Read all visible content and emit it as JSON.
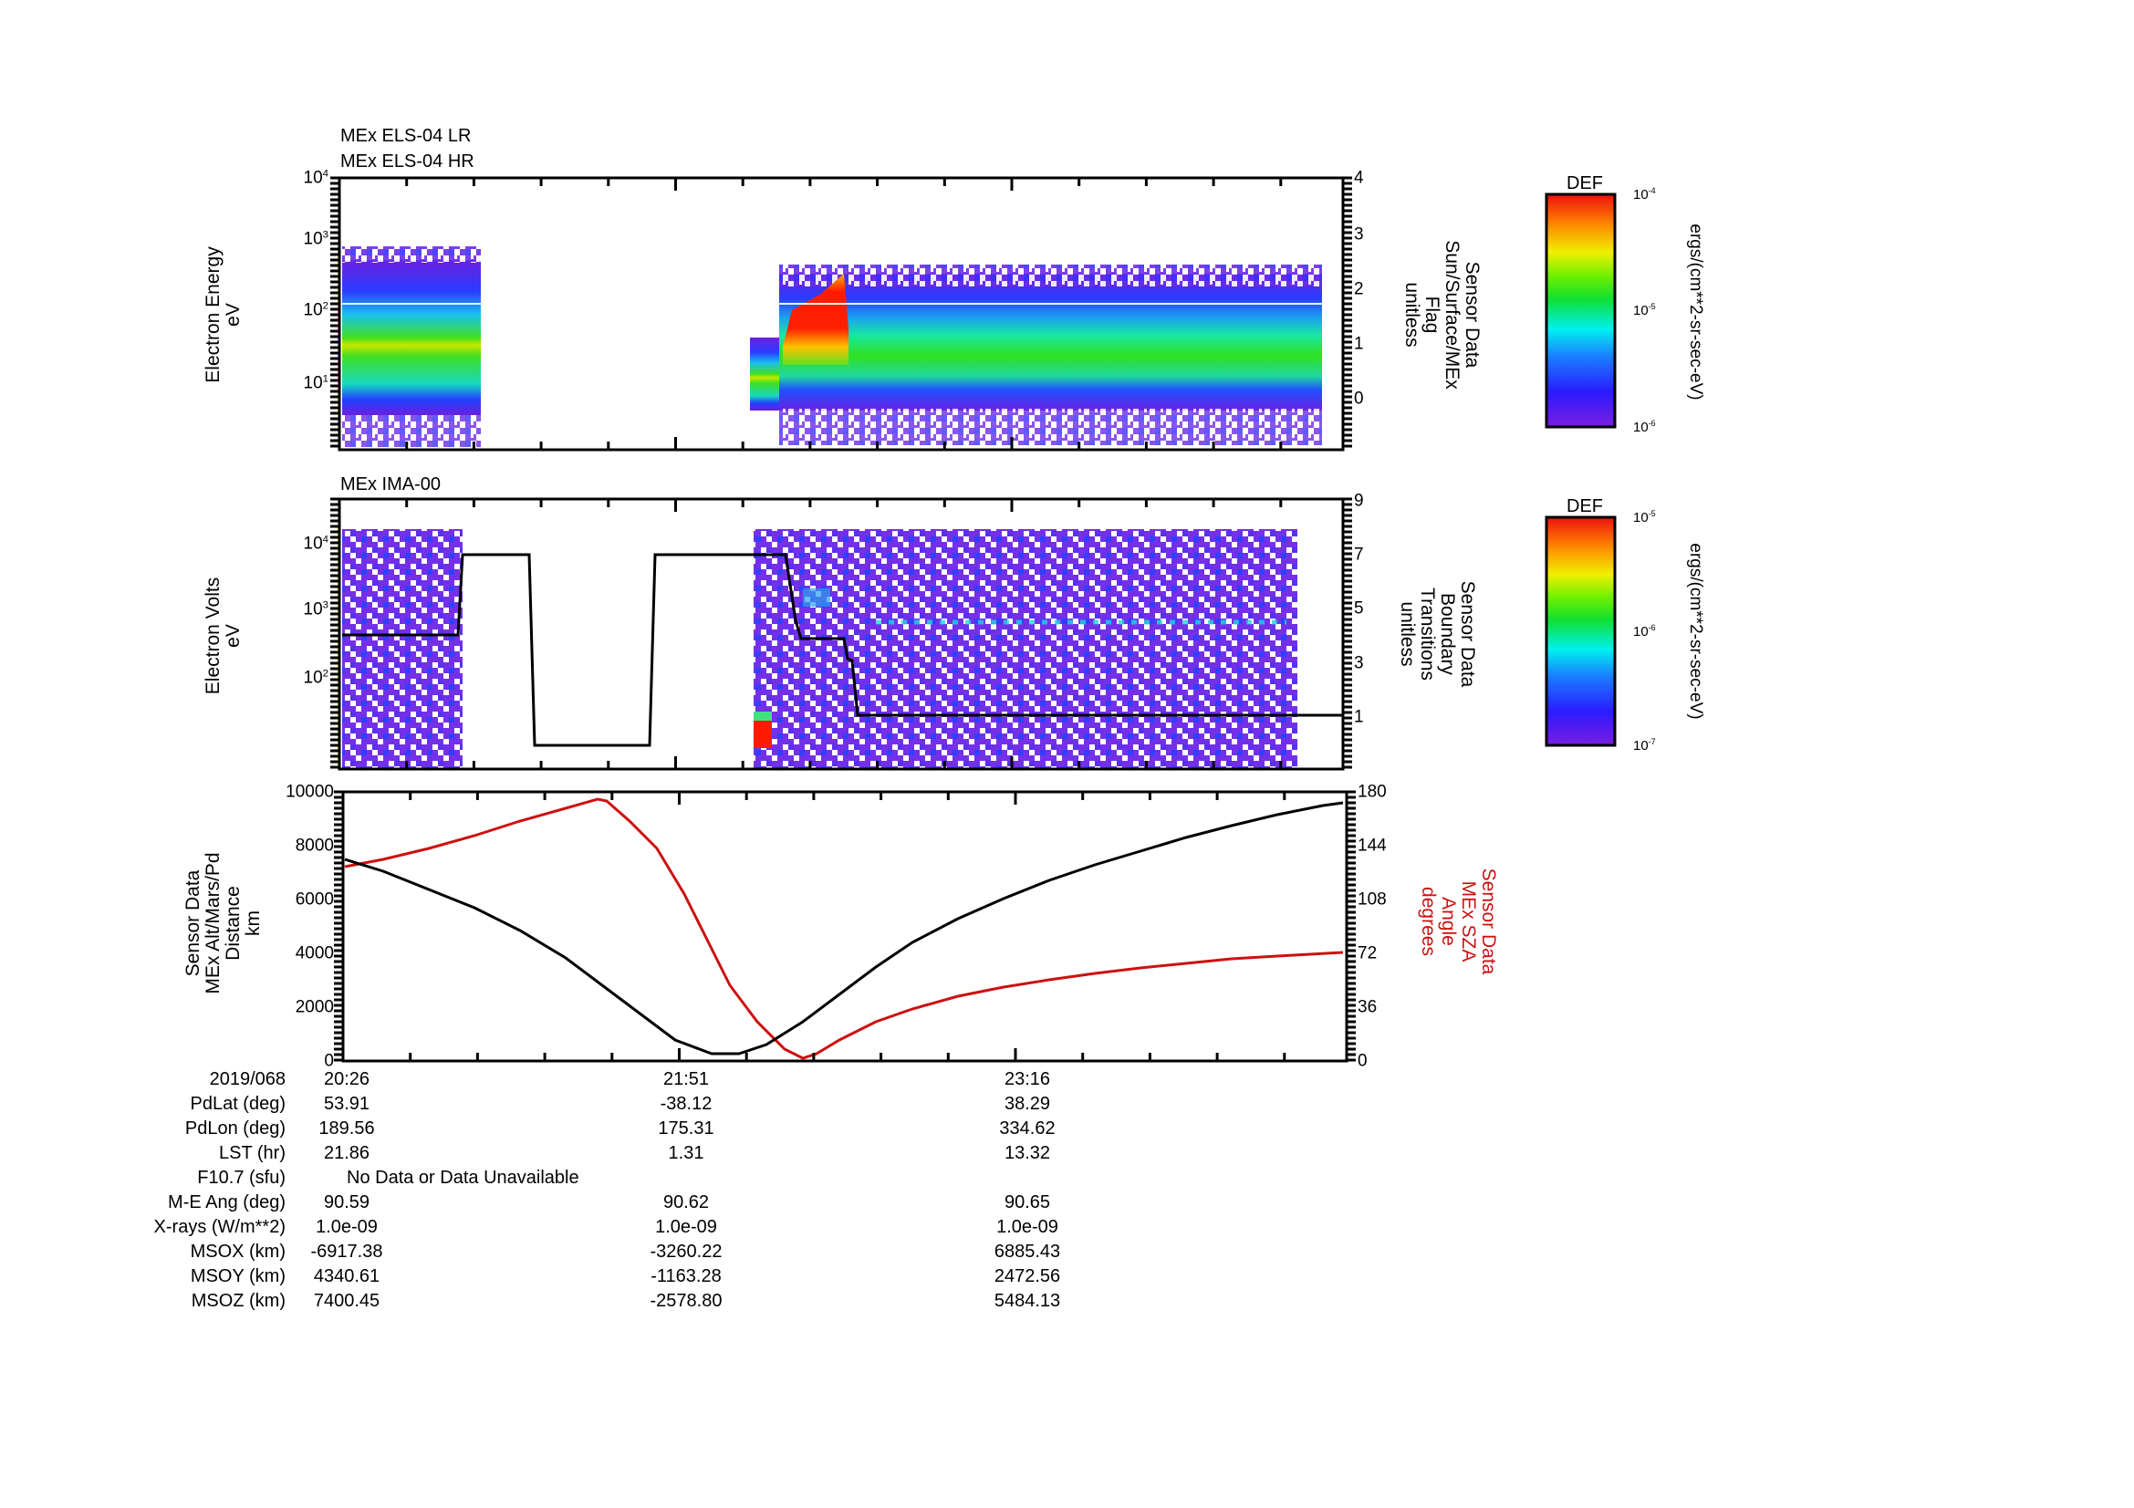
{
  "panels": {
    "top": {
      "titles": [
        "MEx ELS-04 LR",
        "MEx ELS-04 HR"
      ],
      "ylabel": [
        "Electron Energy",
        "eV"
      ],
      "yticks": [
        "10^1",
        "10^2",
        "10^3",
        "10^4"
      ],
      "right_ylabel": [
        "Sensor Data",
        "Sun/Surface/MEx",
        "Flag",
        "unitless"
      ],
      "right_yticks": [
        "0",
        "1",
        "2",
        "3",
        "4"
      ],
      "colorbar": {
        "title": "DEF",
        "max": "10^-4",
        "mid": "10^-5",
        "min": "10^-6",
        "unit": "ergs/(cm**2-sr-sec-eV)"
      }
    },
    "middle": {
      "titles": [
        "MEx IMA-00"
      ],
      "ylabel": [
        "Electron Volts",
        "eV"
      ],
      "yticks": [
        "10^2",
        "10^3",
        "10^4"
      ],
      "right_ylabel": [
        "Sensor Data",
        "Boundary",
        "Transitions",
        "unitless"
      ],
      "right_yticks": [
        "1",
        "3",
        "5",
        "7",
        "9"
      ],
      "colorbar": {
        "title": "DEF",
        "max": "10^-5",
        "mid": "10^-6",
        "min": "10^-7",
        "unit": "ergs/(cm**2-sr-sec-eV)"
      }
    },
    "bottom": {
      "ylabel": [
        "Sensor Data",
        "MEx Alt/Mars/Pd",
        "Distance",
        "km"
      ],
      "yticks": [
        "0",
        "2000",
        "4000",
        "6000",
        "8000",
        "10000"
      ],
      "right_ylabel": [
        "Sensor Data",
        "MEx SZA",
        "Angle",
        "degrees"
      ],
      "right_yticks": [
        "0",
        "36",
        "72",
        "108",
        "144",
        "180"
      ],
      "colors": {
        "altitude": "#000000",
        "sza": "#cc1111"
      }
    }
  },
  "table": {
    "date": "2019/068",
    "times": [
      "20:26",
      "21:51",
      "23:16"
    ],
    "rows": [
      {
        "label": "PdLat (deg)",
        "values": [
          "53.91",
          "-38.12",
          "38.29"
        ]
      },
      {
        "label": "PdLon (deg)",
        "values": [
          "189.56",
          "175.31",
          "334.62"
        ]
      },
      {
        "label": "LST (hr)",
        "values": [
          "21.86",
          "1.31",
          "13.32"
        ]
      },
      {
        "label": "F10.7 (sfu)",
        "note": "No Data or Data Unavailable"
      },
      {
        "label": "M-E Ang (deg)",
        "values": [
          "90.59",
          "90.62",
          "90.65"
        ]
      },
      {
        "label": "X-rays (W/m**2)",
        "values": [
          "1.0e-09",
          "1.0e-09",
          "1.0e-09"
        ]
      },
      {
        "label": "MSOX (km)",
        "values": [
          "-6917.38",
          "-3260.22",
          "6885.43"
        ]
      },
      {
        "label": "MSOY (km)",
        "values": [
          "4340.61",
          "-1163.28",
          "2472.56"
        ]
      },
      {
        "label": "MSOZ (km)",
        "values": [
          "7400.45",
          "-2578.80",
          "5484.13"
        ]
      }
    ]
  },
  "chart_data": [
    {
      "type": "heatmap",
      "title": "MEx ELS-04 LR / MEx ELS-04 HR",
      "ylabel": "Electron Energy (eV)",
      "yscale": "log",
      "ylim": [
        1,
        10000
      ],
      "x_range": [
        "20:26",
        "~00:33"
      ],
      "data_segments": [
        {
          "start": "20:26",
          "end": "~20:59",
          "peak_energy_eV": 20,
          "peak_color": "yellow-green"
        },
        {
          "start": "~21:50",
          "end": "~00:20",
          "burst": {
            "start": "~21:57",
            "end": "~22:13",
            "energy_eV": [
              20,
              200
            ],
            "color": "red"
          },
          "band_energy_eV": [
            5,
            60
          ]
        }
      ],
      "colorbar": {
        "label": "DEF ergs/(cm**2-sr-sec-eV)",
        "range": [
          1e-06,
          0.0001
        ]
      },
      "right_axis": {
        "label": "Sensor Data Sun/Surface/MEx Flag unitless",
        "ylim": [
          -0.9,
          4
        ]
      }
    },
    {
      "type": "heatmap",
      "title": "MEx IMA-00",
      "ylabel": "Electron Volts (eV)",
      "yscale": "log",
      "colorbar": {
        "label": "DEF ergs/(cm**2-sr-sec-eV)",
        "range": [
          1e-07,
          1e-05
        ]
      },
      "overlay_line": {
        "name": "Boundary Transitions",
        "right_ylim": [
          -0.9,
          9
        ],
        "x": [
          "20:26",
          "20:54",
          "20:56",
          "21:10",
          "21:12",
          "21:37",
          "21:39",
          "22:02",
          "22:07",
          "22:14",
          "22:16",
          "22:20",
          "00:32"
        ],
        "y": [
          4,
          4,
          7,
          7,
          0,
          0,
          7,
          7,
          4,
          4,
          2.4,
          1,
          1
        ]
      }
    },
    {
      "type": "line",
      "x_ticks": [
        "20:26",
        "21:51",
        "23:16"
      ],
      "series": [
        {
          "name": "MEx Alt/Mars/Pd Distance (km)",
          "axis": "left",
          "color": "#000000",
          "x_frac": [
            0,
            0.1,
            0.2,
            0.3,
            0.4,
            0.45,
            0.5,
            0.55,
            0.6,
            0.7,
            0.8,
            0.9,
            1.0
          ],
          "y": [
            7600,
            6500,
            5200,
            3600,
            1800,
            800,
            300,
            1200,
            2600,
            5000,
            6800,
            8400,
            9700
          ]
        },
        {
          "name": "MEx SZA Angle (degrees)",
          "axis": "right",
          "color": "#cc1111",
          "x_frac": [
            0,
            0.1,
            0.2,
            0.3,
            0.35,
            0.4,
            0.5,
            0.55,
            0.6,
            0.63,
            0.7,
            0.8,
            0.9,
            1.0
          ],
          "y": [
            128,
            138,
            152,
            168,
            175,
            160,
            100,
            60,
            20,
            2,
            22,
            45,
            62,
            75
          ]
        }
      ],
      "left_ylim": [
        0,
        10000
      ],
      "right_ylim": [
        0,
        180
      ]
    }
  ]
}
